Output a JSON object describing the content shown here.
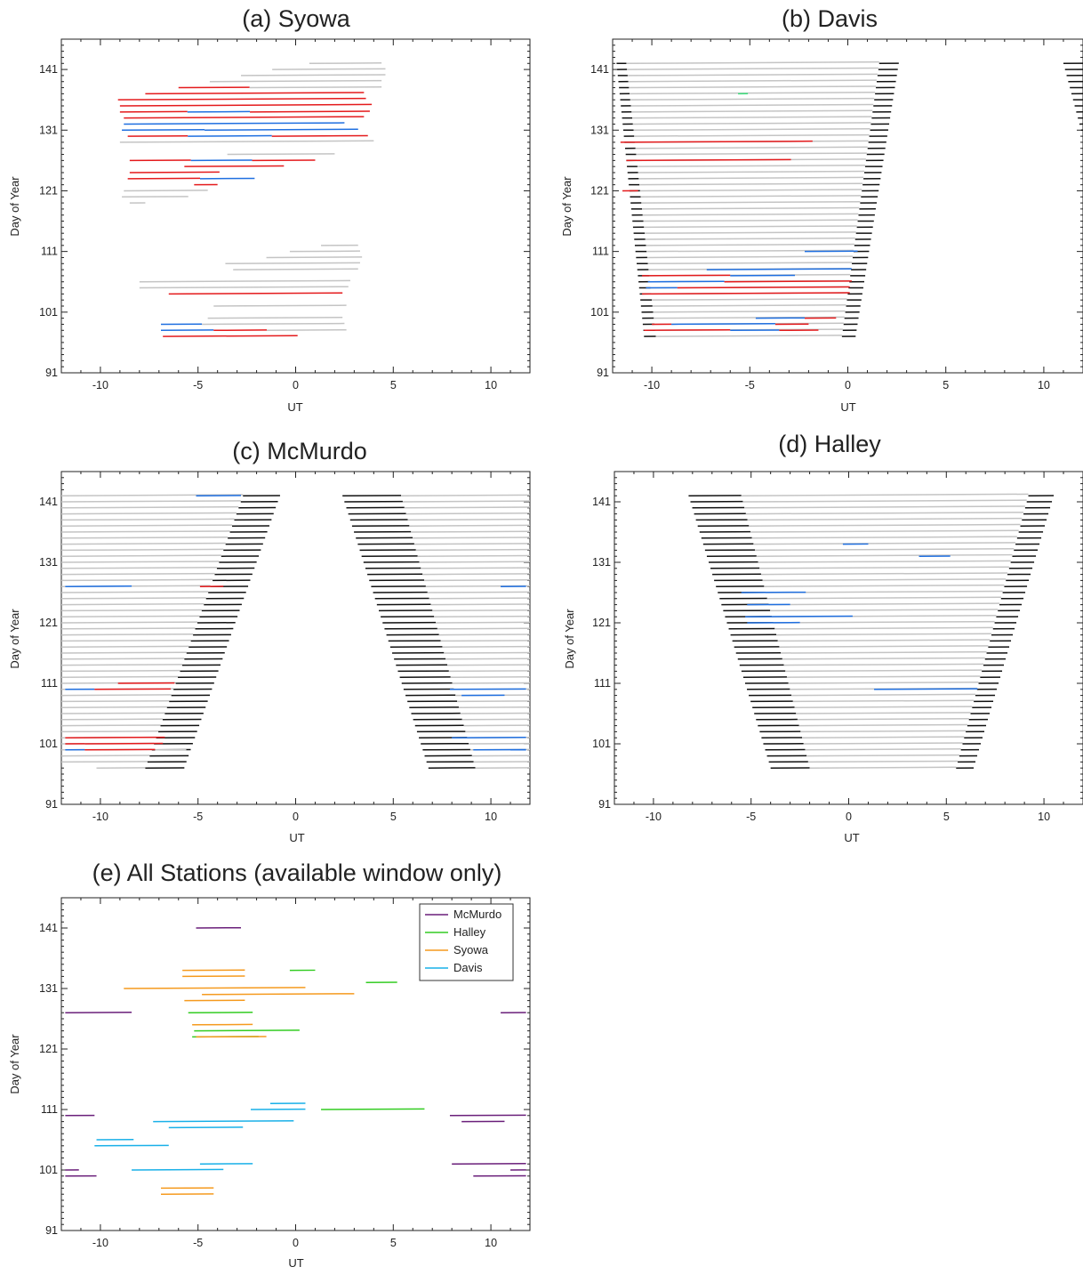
{
  "colors": {
    "black": "#111111",
    "gray": "#c4c4c4",
    "red": "#e41a1c",
    "blue": "#1f6fe0",
    "green": "#3ee07e",
    "mcmurdo": "#6a1f7a",
    "halley": "#33cc22",
    "syowa": "#f59a1e",
    "davis": "#19b0e8"
  },
  "chart_data": [
    {
      "type": "line",
      "title": "(a) Syowa",
      "xlabel": "UT",
      "ylabel": "Day of Year",
      "xlim": [
        -12,
        12
      ],
      "ylim": [
        91,
        146
      ],
      "xticks": [
        "-10",
        "-5",
        "0",
        "5",
        "10"
      ],
      "yticks": [
        "91",
        "101",
        "111",
        "121",
        "131",
        "141"
      ],
      "grid": false,
      "legend": "none",
      "days": {
        "rows": [
          [
            97,
            -6.8,
            0.1,
            [
              [
                0,
                1,
                "red"
              ]
            ]
          ],
          [
            98,
            -6.9,
            -4.2,
            [
              [
                0,
                1,
                "blue"
              ]
            ]
          ],
          [
            98,
            -4.2,
            2.6,
            [
              [
                0,
                0.4,
                "red"
              ],
              [
                0.4,
                1,
                "gray"
              ]
            ]
          ],
          [
            99,
            -6.9,
            -4.8,
            [
              [
                0,
                1,
                "blue"
              ]
            ]
          ],
          [
            99,
            -4.8,
            2.5,
            [
              [
                0,
                1,
                "gray"
              ]
            ]
          ],
          [
            100,
            -4.5,
            2.4,
            [
              [
                0,
                1,
                "gray"
              ]
            ]
          ],
          [
            102,
            -4.2,
            2.6,
            [
              [
                0,
                1,
                "gray"
              ]
            ]
          ],
          [
            104,
            -6.5,
            2.4,
            [
              [
                0,
                1,
                "red"
              ]
            ]
          ],
          [
            105,
            -8,
            2.7,
            [
              [
                0,
                1,
                "gray"
              ]
            ]
          ],
          [
            106,
            -8,
            2.8,
            [
              [
                0,
                1,
                "gray"
              ]
            ]
          ],
          [
            108,
            -3.2,
            3.2,
            [
              [
                0,
                1,
                "gray"
              ]
            ]
          ],
          [
            109,
            -3.6,
            3.3,
            [
              [
                0,
                1,
                "gray"
              ]
            ]
          ],
          [
            110,
            -1.5,
            3.4,
            [
              [
                0,
                1,
                "gray"
              ]
            ]
          ],
          [
            111,
            -0.3,
            3.3,
            [
              [
                0,
                1,
                "gray"
              ]
            ]
          ],
          [
            112,
            1.3,
            3.2,
            [
              [
                0,
                1,
                "gray"
              ]
            ]
          ],
          [
            119,
            -8.5,
            -7.7,
            [
              [
                0,
                1,
                "gray"
              ]
            ]
          ],
          [
            120,
            -8.9,
            -5.5,
            [
              [
                0,
                1,
                "gray"
              ]
            ]
          ],
          [
            121,
            -8.8,
            -4.5,
            [
              [
                0,
                1,
                "gray"
              ]
            ]
          ],
          [
            122,
            -5.2,
            -4,
            [
              [
                0,
                1,
                "red"
              ]
            ]
          ],
          [
            123,
            -8.6,
            -2.1,
            [
              [
                0,
                0.57,
                "red"
              ],
              [
                0.57,
                1,
                "blue"
              ]
            ]
          ],
          [
            124,
            -8.5,
            -3.9,
            [
              [
                0,
                1,
                "red"
              ]
            ]
          ],
          [
            125,
            -5.7,
            -0.6,
            [
              [
                0,
                1,
                "red"
              ]
            ]
          ],
          [
            126,
            -8.5,
            1,
            [
              [
                0,
                0.33,
                "red"
              ],
              [
                0.33,
                0.66,
                "blue"
              ],
              [
                0.66,
                1,
                "red"
              ]
            ]
          ],
          [
            127,
            -3.5,
            2,
            [
              [
                0,
                1,
                "gray"
              ]
            ]
          ],
          [
            129,
            -9,
            4,
            [
              [
                0,
                1,
                "gray"
              ]
            ]
          ],
          [
            130,
            -8.6,
            3.7,
            [
              [
                0,
                0.25,
                "red"
              ],
              [
                0.25,
                0.6,
                "blue"
              ],
              [
                0.6,
                1,
                "red"
              ]
            ]
          ],
          [
            131,
            -8.9,
            3.2,
            [
              [
                0,
                0.35,
                "blue"
              ],
              [
                0.35,
                1,
                "blue"
              ]
            ]
          ],
          [
            132,
            -8.8,
            2.5,
            [
              [
                0,
                1,
                "blue"
              ]
            ]
          ],
          [
            133,
            -8.8,
            3.5,
            [
              [
                0,
                1,
                "red"
              ]
            ]
          ],
          [
            134,
            -9,
            3.8,
            [
              [
                0,
                0.27,
                "red"
              ],
              [
                0.27,
                0.52,
                "blue"
              ],
              [
                0.52,
                1,
                "red"
              ]
            ]
          ],
          [
            135,
            -9,
            3.9,
            [
              [
                0,
                1,
                "red"
              ]
            ]
          ],
          [
            136,
            -9.1,
            3.6,
            [
              [
                0,
                1,
                "red"
              ]
            ]
          ],
          [
            137,
            -7.7,
            3.5,
            [
              [
                0,
                1,
                "red"
              ]
            ]
          ],
          [
            138,
            -6,
            4.4,
            [
              [
                0,
                0.35,
                "red"
              ],
              [
                0.35,
                1,
                "gray"
              ]
            ]
          ],
          [
            139,
            -4.4,
            4.4,
            [
              [
                0,
                1,
                "gray"
              ]
            ]
          ],
          [
            140,
            -2.8,
            4.6,
            [
              [
                0,
                1,
                "gray"
              ]
            ]
          ],
          [
            141,
            -1.2,
            4.6,
            [
              [
                0,
                1,
                "gray"
              ]
            ]
          ],
          [
            142,
            0.7,
            4.4,
            [
              [
                0,
                1,
                "gray"
              ]
            ]
          ]
        ]
      }
    },
    {
      "type": "line",
      "title": "(b) Davis",
      "xlabel": "UT",
      "ylabel": "Day of Year",
      "xlim": [
        -12,
        12
      ],
      "ylim": [
        91,
        146
      ],
      "xticks": [
        "-10",
        "-5",
        "0",
        "5",
        "10"
      ],
      "yticks": [
        "91",
        "101",
        "111",
        "121",
        "131",
        "141"
      ],
      "grid": false,
      "legend": "none",
      "gen": {
        "d0": 97,
        "d1": 142,
        "s0": -10.4,
        "s1": -11.8,
        "e0": 0.4,
        "e1": 2.6,
        "g0": -9.8,
        "g1": -11.3,
        "ge0": -0.3,
        "ge1": 1.6
      },
      "overlays": [
        [
          98,
          -10.4,
          -6,
          "red"
        ],
        [
          98,
          -6,
          -3.5,
          "blue"
        ],
        [
          98,
          -3.5,
          -1.5,
          "red"
        ],
        [
          99,
          -10,
          -9,
          "red"
        ],
        [
          99,
          -9,
          -3.7,
          "blue"
        ],
        [
          99,
          -3.7,
          -2,
          "red"
        ],
        [
          100,
          -4.7,
          -2.2,
          "blue"
        ],
        [
          100,
          -2.2,
          -0.6,
          "red"
        ],
        [
          104,
          -10.5,
          0.1,
          "red"
        ],
        [
          105,
          -10.3,
          -8.7,
          "blue"
        ],
        [
          105,
          -8.7,
          0.1,
          "red"
        ],
        [
          106,
          -10.2,
          -6.3,
          "blue"
        ],
        [
          106,
          -6.3,
          0.2,
          "red"
        ],
        [
          107,
          -10.5,
          -6,
          "red"
        ],
        [
          107,
          -6,
          -2.7,
          "blue"
        ],
        [
          108,
          -7.2,
          0.2,
          "blue"
        ],
        [
          111,
          -2.2,
          0.5,
          "blue"
        ],
        [
          121,
          -11.5,
          -10.7,
          "red"
        ],
        [
          126,
          -11.3,
          -2.9,
          "red"
        ],
        [
          129,
          -11.6,
          -1.8,
          "red"
        ],
        [
          137,
          -5.6,
          -5.1,
          "green"
        ]
      ],
      "wrap": {
        "d0": 131,
        "d1": 142,
        "s0": 11.9,
        "s1": 11.0
      }
    },
    {
      "type": "line",
      "title": "(c) McMurdo",
      "xlabel": "UT",
      "ylabel": "Day of Year",
      "xlim": [
        -12,
        12
      ],
      "ylim": [
        91,
        146
      ],
      "xticks": [
        "-10",
        "-5",
        "0",
        "5",
        "10"
      ],
      "yticks": [
        "91",
        "101",
        "111",
        "121",
        "131",
        "141"
      ],
      "grid": false,
      "legend": "none",
      "gen": {
        "d0": 97,
        "d1": 142,
        "le0": -5.7,
        "le1": -0.8,
        "lg0": -7.7,
        "lg1": -2.7,
        "rs0": 6.8,
        "rs1": 2.4,
        "rg0": 9.2,
        "rg1": 5.4
      },
      "overlays": [
        [
          100,
          -11.8,
          -10.8,
          "blue"
        ],
        [
          100,
          -10.8,
          -7.2,
          "red"
        ],
        [
          100,
          -7.2,
          -5.6,
          "gray"
        ],
        [
          101,
          -11.8,
          -10.8,
          "red"
        ],
        [
          101,
          -10.8,
          -6.8,
          "red"
        ],
        [
          102,
          -11.8,
          -6.7,
          "red"
        ],
        [
          110,
          -11.8,
          -10.3,
          "blue"
        ],
        [
          110,
          -10.3,
          -6.4,
          "red"
        ],
        [
          111,
          -9.1,
          -6.2,
          "red"
        ],
        [
          127,
          -4.9,
          -3.7,
          "red"
        ],
        [
          127,
          -11.8,
          -8.4,
          "blue"
        ],
        [
          142,
          -5.1,
          -2.8,
          "blue"
        ],
        [
          100,
          9.1,
          11.8,
          "blue"
        ],
        [
          100,
          11,
          11.8,
          "blue"
        ],
        [
          102,
          8,
          11.8,
          "blue"
        ],
        [
          109,
          8.5,
          10.7,
          "blue"
        ],
        [
          110,
          7.9,
          11.8,
          "blue"
        ],
        [
          127,
          10.5,
          11.8,
          "blue"
        ]
      ]
    },
    {
      "type": "line",
      "title": "(d) Halley",
      "xlabel": "UT",
      "ylabel": "Day of Year",
      "xlim": [
        -12,
        12
      ],
      "ylim": [
        91,
        146
      ],
      "xticks": [
        "-10",
        "-5",
        "0",
        "5",
        "10"
      ],
      "yticks": [
        "91",
        "101",
        "111",
        "121",
        "131",
        "141"
      ],
      "grid": false,
      "legend": "none",
      "gen": {
        "d0": 97,
        "d1": 142,
        "s0": -4,
        "s1": -8.2,
        "e0": 6.4,
        "e1": 10.5,
        "g0": -2,
        "g1": -5.5,
        "ge0": 5.5,
        "ge1": 9.2
      },
      "overlays": [
        [
          110,
          1.3,
          6.6,
          "blue"
        ],
        [
          121,
          -5.2,
          -2.5,
          "blue"
        ],
        [
          122,
          -5.3,
          0.2,
          "blue"
        ],
        [
          124,
          -5.2,
          -3,
          "blue"
        ],
        [
          126,
          -5.5,
          -2.2,
          "blue"
        ],
        [
          132,
          3.6,
          5.2,
          "blue"
        ],
        [
          134,
          -0.3,
          1,
          "blue"
        ]
      ]
    },
    {
      "type": "line",
      "title": "(e) All Stations (available window only)",
      "xlabel": "UT",
      "ylabel": "Day of Year",
      "xlim": [
        -12,
        12
      ],
      "ylim": [
        91,
        146
      ],
      "xticks": [
        "-10",
        "-5",
        "0",
        "5",
        "10"
      ],
      "yticks": [
        "91",
        "101",
        "111",
        "121",
        "131",
        "141"
      ],
      "grid": false,
      "legend": "top-right",
      "series": [
        {
          "name": "McMurdo",
          "color": "#6a1f7a",
          "segments": [
            [
              141,
              -5.1,
              -2.8
            ],
            [
              127,
              -11.8,
              -8.4
            ],
            [
              127,
              10.5,
              11.8
            ],
            [
              110,
              -11.8,
              -10.3
            ],
            [
              110,
              7.9,
              11.8
            ],
            [
              109,
              8.5,
              10.7
            ],
            [
              102,
              8,
              11.8
            ],
            [
              101,
              -11.8,
              -11.1
            ],
            [
              101,
              11,
              11.8
            ],
            [
              100,
              -11.8,
              -10.2
            ],
            [
              100,
              9.1,
              11.8
            ]
          ]
        },
        {
          "name": "Halley",
          "color": "#33cc22",
          "segments": [
            [
              134,
              -0.3,
              1
            ],
            [
              132,
              3.6,
              5.2
            ],
            [
              127,
              -5.5,
              -2.2
            ],
            [
              124,
              -5.2,
              0.2
            ],
            [
              123,
              -5.3,
              -1.9
            ],
            [
              111,
              1.3,
              6.6
            ]
          ]
        },
        {
          "name": "Syowa",
          "color": "#f59a1e",
          "segments": [
            [
              134,
              -5.8,
              -2.6
            ],
            [
              133,
              -5.8,
              -2.6
            ],
            [
              131,
              -8.8,
              0.5
            ],
            [
              130,
              -4.8,
              3
            ],
            [
              129,
              -5.7,
              -2.6
            ],
            [
              125,
              -5.3,
              -2.2
            ],
            [
              123,
              -5.1,
              -1.5
            ],
            [
              98,
              -6.9,
              -4.2
            ],
            [
              97,
              -6.9,
              -4.2
            ]
          ]
        },
        {
          "name": "Davis",
          "color": "#19b0e8",
          "segments": [
            [
              112,
              -1.3,
              0.5
            ],
            [
              111,
              -2.3,
              0.5
            ],
            [
              109,
              -7.3,
              -0.1
            ],
            [
              108,
              -6.5,
              -2.7
            ],
            [
              106,
              -10.2,
              -8.3
            ],
            [
              105,
              -10.3,
              -6.5
            ],
            [
              102,
              -4.9,
              -2.2
            ],
            [
              101,
              -8.4,
              -3.7
            ]
          ]
        }
      ]
    }
  ]
}
